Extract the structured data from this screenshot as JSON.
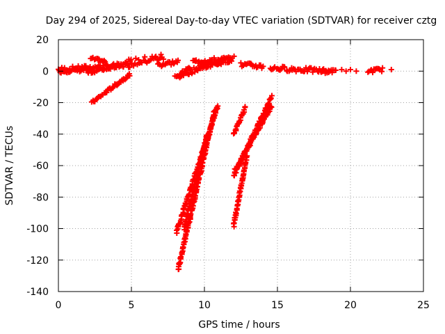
{
  "chart_data": {
    "type": "scatter",
    "title": "Day 294 of 2025, Sidereal Day-to-day VTEC variation (SDTVAR) for receiver cztg",
    "xlabel": "GPS time / hours",
    "ylabel": "SDTVAR / TECUs",
    "xlim": [
      0,
      25
    ],
    "ylim": [
      -140,
      20
    ],
    "xticks": [
      0,
      5,
      10,
      15,
      20,
      25
    ],
    "yticks": [
      20,
      0,
      -20,
      -40,
      -60,
      -80,
      -100,
      -120,
      -140
    ],
    "grid": true,
    "marker": "plus",
    "color": "#ff0000",
    "segments": [
      {
        "x0": 0.0,
        "y0": 1,
        "x1": 5.0,
        "y1": 4,
        "spread": 1.5
      },
      {
        "x0": 0.1,
        "y0": 0,
        "x1": 2.0,
        "y1": 1,
        "spread": 1.2
      },
      {
        "x0": 2.2,
        "y0": 8,
        "x1": 3.2,
        "y1": 6,
        "spread": 1.0
      },
      {
        "x0": 2.0,
        "y0": -1,
        "x1": 4.8,
        "y1": 5,
        "spread": 1.0
      },
      {
        "x0": 2.3,
        "y0": -20,
        "x1": 4.9,
        "y1": -2,
        "spread": 1.0
      },
      {
        "x0": 4.8,
        "y0": 5,
        "x1": 7.2,
        "y1": 9,
        "spread": 2.5
      },
      {
        "x0": 6.8,
        "y0": 4,
        "x1": 8.2,
        "y1": 6,
        "spread": 1.5
      },
      {
        "x0": 8.0,
        "y0": -4,
        "x1": 10.5,
        "y1": 5,
        "spread": 1.5
      },
      {
        "x0": 8.3,
        "y0": -2,
        "x1": 9.0,
        "y1": 2,
        "spread": 1.0
      },
      {
        "x0": 9.2,
        "y0": 6,
        "x1": 12.0,
        "y1": 8,
        "spread": 1.5
      },
      {
        "x0": 9.5,
        "y0": 2,
        "x1": 11.8,
        "y1": 7,
        "spread": 1.2
      },
      {
        "x0": 12.5,
        "y0": 4,
        "x1": 14.0,
        "y1": 3,
        "spread": 1.5
      },
      {
        "x0": 14.5,
        "y0": 2,
        "x1": 18.5,
        "y1": 0,
        "spread": 1.5
      },
      {
        "x0": 18.0,
        "y0": 0,
        "x1": 19.0,
        "y1": 0,
        "spread": 1.0
      },
      {
        "x0": 21.2,
        "y0": 0,
        "x1": 22.2,
        "y1": 1,
        "spread": 1.2
      },
      {
        "x0": 8.1,
        "y0": -102,
        "x1": 10.9,
        "y1": -22,
        "spread": 1.0
      },
      {
        "x0": 8.2,
        "y0": -126,
        "x1": 10.7,
        "y1": -25,
        "spread": 1.0
      },
      {
        "x0": 8.6,
        "y0": -100,
        "x1": 10.2,
        "y1": -40,
        "spread": 1.0
      },
      {
        "x0": 12.0,
        "y0": -40,
        "x1": 12.8,
        "y1": -23,
        "spread": 0.8
      },
      {
        "x0": 12.0,
        "y0": -67,
        "x1": 14.6,
        "y1": -16,
        "spread": 1.0
      },
      {
        "x0": 12.1,
        "y0": -63,
        "x1": 14.6,
        "y1": -22,
        "spread": 1.0
      },
      {
        "x0": 12.0,
        "y0": -98,
        "x1": 12.9,
        "y1": -54,
        "spread": 0.8
      }
    ],
    "points": [
      [
        19.4,
        1
      ],
      [
        19.7,
        0
      ],
      [
        20.0,
        1
      ],
      [
        20.4,
        0
      ],
      [
        22.8,
        1
      ]
    ]
  }
}
